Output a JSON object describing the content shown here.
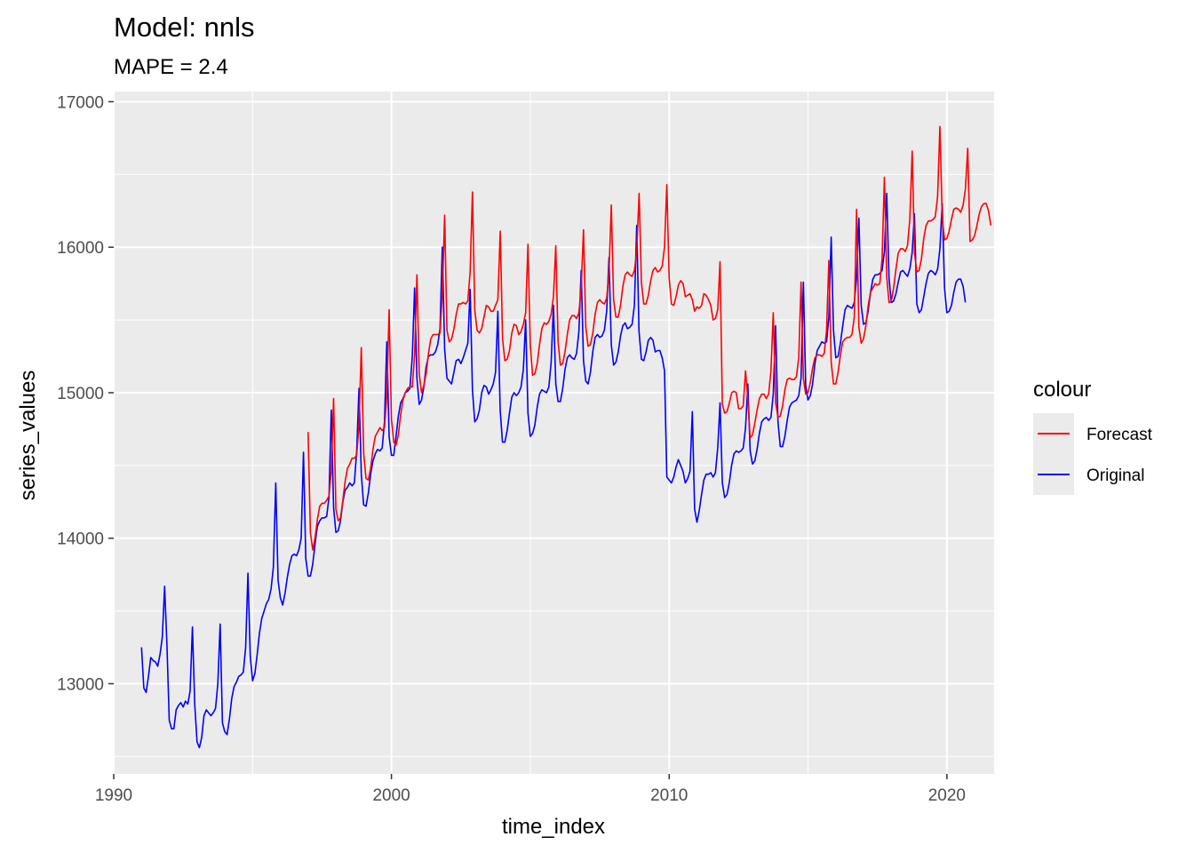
{
  "chart_data": {
    "type": "line",
    "title": "Model:  nnls",
    "subtitle": "MAPE = 2.4",
    "xlabel": "time_index",
    "ylabel": "series_values",
    "xlim": [
      1990.0,
      2021.7
    ],
    "ylim": [
      12380,
      17070
    ],
    "x_ticks": [
      1990,
      2000,
      2010,
      2020
    ],
    "y_ticks": [
      13000,
      14000,
      15000,
      16000,
      17000
    ],
    "x_tick_labels": [
      "1990",
      "2000",
      "2010",
      "2020"
    ],
    "y_tick_labels": [
      "13000",
      "14000",
      "15000",
      "16000",
      "17000"
    ],
    "grid": true,
    "legend": {
      "title": "colour",
      "position": "right",
      "entries": [
        {
          "label": "Forecast",
          "color": "#ff0000"
        },
        {
          "label": "Original",
          "color": "#0000ff"
        }
      ]
    },
    "series": [
      {
        "name": "Original",
        "color": "#0000ff",
        "x_start": 1991.0,
        "step": 0.08333,
        "values": [
          13250,
          12970,
          12940,
          13050,
          13180,
          13160,
          13150,
          13120,
          13200,
          13320,
          13670,
          13270,
          12750,
          12690,
          12690,
          12820,
          12850,
          12870,
          12840,
          12880,
          12860,
          12950,
          13390,
          12860,
          12600,
          12560,
          12630,
          12780,
          12820,
          12800,
          12780,
          12800,
          12830,
          13000,
          13410,
          12730,
          12670,
          12650,
          12760,
          12900,
          12980,
          13010,
          13050,
          13060,
          13080,
          13250,
          13760,
          13190,
          13020,
          13070,
          13200,
          13350,
          13450,
          13500,
          13550,
          13580,
          13650,
          13800,
          14380,
          13710,
          13590,
          13540,
          13620,
          13730,
          13820,
          13880,
          13890,
          13880,
          13920,
          14000,
          14590,
          13860,
          13740,
          13740,
          13820,
          13960,
          14080,
          14120,
          14140,
          14140,
          14150,
          14280,
          14880,
          14210,
          14040,
          14050,
          14120,
          14250,
          14330,
          14350,
          14380,
          14360,
          14380,
          14600,
          15030,
          14440,
          14230,
          14220,
          14310,
          14440,
          14530,
          14580,
          14610,
          14600,
          14620,
          14800,
          15350,
          14700,
          14570,
          14570,
          14700,
          14840,
          14930,
          14960,
          15000,
          15010,
          15030,
          15250,
          15720,
          15100,
          14920,
          14950,
          15040,
          15180,
          15250,
          15260,
          15260,
          15280,
          15330,
          15440,
          16000,
          15300,
          15100,
          15080,
          15060,
          15140,
          15220,
          15230,
          15200,
          15240,
          15290,
          15340,
          15710,
          15020,
          14800,
          14820,
          14880,
          15000,
          15050,
          15040,
          14990,
          15020,
          15060,
          15140,
          15560,
          14880,
          14660,
          14660,
          14740,
          14860,
          14970,
          15000,
          14980,
          15000,
          15040,
          15160,
          15500,
          14860,
          14700,
          14720,
          14780,
          14900,
          14990,
          15020,
          15010,
          15000,
          15040,
          15210,
          15600,
          15060,
          14940,
          14940,
          15030,
          15160,
          15240,
          15260,
          15240,
          15230,
          15270,
          15420,
          15840,
          15220,
          15080,
          15060,
          15140,
          15280,
          15380,
          15400,
          15380,
          15390,
          15430,
          15560,
          15930,
          15330,
          15190,
          15210,
          15280,
          15390,
          15460,
          15480,
          15440,
          15450,
          15470,
          15600,
          16150,
          15420,
          15230,
          15220,
          15280,
          15360,
          15380,
          15360,
          15280,
          15290,
          15290,
          15240,
          15150,
          14420,
          14400,
          14380,
          14420,
          14490,
          14540,
          14500,
          14460,
          14380,
          14410,
          14460,
          14870,
          14200,
          14110,
          14190,
          14300,
          14400,
          14440,
          14440,
          14450,
          14420,
          14450,
          14620,
          14930,
          14380,
          14280,
          14300,
          14380,
          14500,
          14580,
          14600,
          14590,
          14600,
          14620,
          14760,
          15060,
          14600,
          14510,
          14530,
          14610,
          14720,
          14800,
          14820,
          14830,
          14810,
          14830,
          14990,
          15460,
          14800,
          14630,
          14630,
          14700,
          14810,
          14900,
          14930,
          14940,
          14950,
          14980,
          15100,
          15760,
          15050,
          14950,
          14980,
          15060,
          15200,
          15290,
          15320,
          15350,
          15340,
          15350,
          15520,
          16070,
          15430,
          15240,
          15250,
          15340,
          15460,
          15570,
          15600,
          15590,
          15580,
          15620,
          15790,
          16200,
          15600,
          15470,
          15480,
          15560,
          15690,
          15780,
          15810,
          15810,
          15820,
          15840,
          15970,
          16370,
          15790,
          15620,
          15630,
          15680,
          15760,
          15830,
          15840,
          15820,
          15800,
          15850,
          15960,
          16230,
          15610,
          15550,
          15570,
          15660,
          15750,
          15820,
          15840,
          15830,
          15810,
          15850,
          15990,
          16300,
          15720,
          15550,
          15560,
          15600,
          15690,
          15760,
          15780,
          15780,
          15730,
          15620
        ]
      },
      {
        "name": "Forecast",
        "color": "#ff0000",
        "x_start": 1997.0,
        "step": 0.08333,
        "values": [
          14730,
          14040,
          13920,
          14000,
          14130,
          14220,
          14240,
          14240,
          14260,
          14290,
          14460,
          14960,
          14200,
          14120,
          14140,
          14260,
          14390,
          14480,
          14510,
          14550,
          14550,
          14570,
          14780,
          15310,
          14580,
          14410,
          14400,
          14480,
          14610,
          14700,
          14730,
          14760,
          14740,
          14760,
          14980,
          15570,
          14820,
          14660,
          14640,
          14710,
          14850,
          14950,
          15000,
          15030,
          15040,
          15040,
          15260,
          15810,
          15130,
          15000,
          15050,
          15130,
          15270,
          15370,
          15400,
          15400,
          15400,
          15410,
          15680,
          16220,
          15430,
          15350,
          15370,
          15440,
          15540,
          15610,
          15610,
          15620,
          15610,
          15630,
          15830,
          16380,
          15570,
          15430,
          15410,
          15440,
          15520,
          15600,
          15590,
          15560,
          15560,
          15600,
          15640,
          16110,
          15370,
          15220,
          15230,
          15290,
          15410,
          15470,
          15460,
          15400,
          15420,
          15470,
          15550,
          16020,
          15330,
          15120,
          15130,
          15200,
          15330,
          15440,
          15480,
          15470,
          15490,
          15540,
          15660,
          16010,
          15350,
          15190,
          15200,
          15280,
          15400,
          15500,
          15530,
          15530,
          15510,
          15550,
          15720,
          16120,
          15450,
          15320,
          15330,
          15410,
          15540,
          15620,
          15640,
          15620,
          15610,
          15650,
          15820,
          16290,
          15640,
          15520,
          15520,
          15600,
          15730,
          15810,
          15830,
          15810,
          15800,
          15840,
          15970,
          16370,
          15760,
          15610,
          15610,
          15670,
          15770,
          15840,
          15860,
          15830,
          15840,
          15870,
          16000,
          16430,
          15790,
          15610,
          15600,
          15660,
          15740,
          15770,
          15750,
          15660,
          15670,
          15680,
          15640,
          15560,
          15590,
          15580,
          15600,
          15680,
          15670,
          15640,
          15600,
          15500,
          15510,
          15570,
          15900,
          14920,
          14860,
          14870,
          14930,
          15000,
          15010,
          15000,
          14890,
          14890,
          14910,
          15150,
          14950,
          14690,
          14710,
          14790,
          14880,
          14960,
          14990,
          14990,
          14960,
          14990,
          15150,
          15550,
          14930,
          14830,
          14840,
          14910,
          15020,
          15090,
          15100,
          15090,
          15090,
          15110,
          15240,
          15760,
          15100,
          14990,
          15000,
          15070,
          15170,
          15240,
          15260,
          15260,
          15250,
          15270,
          15430,
          15910,
          15210,
          15060,
          15060,
          15140,
          15260,
          15350,
          15370,
          15380,
          15380,
          15400,
          15520,
          16260,
          15450,
          15340,
          15370,
          15460,
          15600,
          15690,
          15720,
          15750,
          15740,
          15750,
          15920,
          16480,
          15800,
          15620,
          15630,
          15720,
          15850,
          15960,
          15990,
          15990,
          15970,
          16010,
          16190,
          16660,
          15960,
          15830,
          15840,
          15920,
          16060,
          16150,
          16180,
          16180,
          16190,
          16210,
          16350,
          16830,
          16200,
          16050,
          16060,
          16110,
          16190,
          16260,
          16270,
          16260,
          16240,
          16290,
          16400,
          16680,
          16040,
          16050,
          16080,
          16150,
          16230,
          16280,
          16300,
          16300,
          16250,
          16150
        ]
      }
    ]
  }
}
